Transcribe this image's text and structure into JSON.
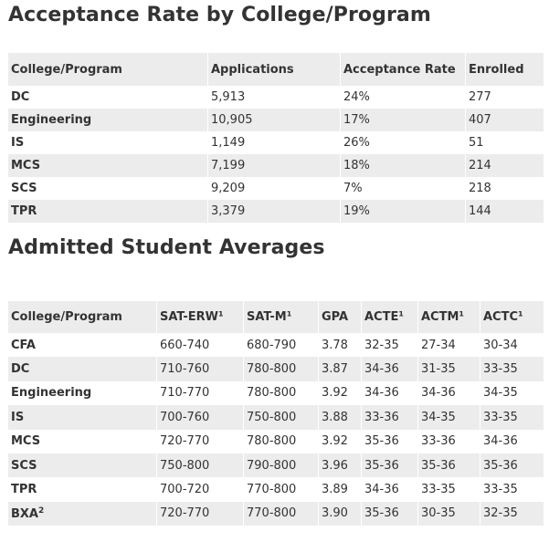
{
  "acceptance": {
    "title": "Acceptance Rate by College/Program",
    "headers": [
      "College/Program",
      "Applications",
      "Acceptance Rate",
      "Enrolled"
    ],
    "rows": [
      [
        "DC",
        "5,913",
        "24%",
        "277"
      ],
      [
        "Engineering",
        "10,905",
        "17%",
        "407"
      ],
      [
        "IS",
        "1,149",
        "26%",
        "51"
      ],
      [
        "MCS",
        "7,199",
        "18%",
        "214"
      ],
      [
        "SCS",
        "9,209",
        "7%",
        "218"
      ],
      [
        "TPR",
        "3,379",
        "19%",
        "144"
      ]
    ]
  },
  "averages": {
    "title": "Admitted Student Averages",
    "headers": [
      "College/Program",
      "SAT-ERW¹",
      "SAT-M¹",
      "GPA",
      "ACTE¹",
      "ACTM¹",
      "ACTC¹"
    ],
    "rows": [
      [
        "CFA",
        "660-740",
        "680-790",
        "3.78",
        "32-35",
        "27-34",
        "30-34"
      ],
      [
        "DC",
        "710-760",
        "780-800",
        "3.87",
        "34-36",
        "31-35",
        "33-35"
      ],
      [
        "Engineering",
        "710-770",
        "780-800",
        "3.92",
        "34-36",
        "34-36",
        "34-35"
      ],
      [
        "IS",
        "700-760",
        "750-800",
        "3.88",
        "33-36",
        "34-35",
        "33-35"
      ],
      [
        "MCS",
        "720-770",
        "780-800",
        "3.92",
        "35-36",
        "33-36",
        "34-36"
      ],
      [
        "SCS",
        "750-800",
        "790-800",
        "3.96",
        "35-36",
        "35-36",
        "35-36"
      ],
      [
        "TPR",
        "700-720",
        "770-800",
        "3.89",
        "34-36",
        "33-35",
        "33-35"
      ],
      [
        "BXA",
        "720-770",
        "770-800",
        "3.90",
        "35-36",
        "30-35",
        "32-35"
      ]
    ],
    "bxa_superscript": "2"
  }
}
